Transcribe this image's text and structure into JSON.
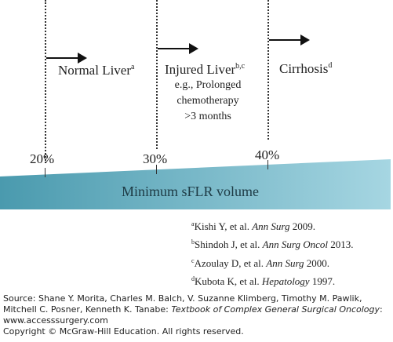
{
  "zones": [
    {
      "label": "Normal Liver",
      "sup": "a"
    },
    {
      "label": "Injured Liver",
      "sup": "b,c",
      "detail": [
        "e.g., Prolonged",
        "chemotherapy",
        ">3 months"
      ]
    },
    {
      "label": "Cirrhosis",
      "sup": "d"
    }
  ],
  "thresholds": [
    "20%",
    "30%",
    "40%"
  ],
  "bar_label": "Minimum sFLR volume",
  "colors": {
    "bar_start": "#4a9aae",
    "bar_end": "#a6d6e2"
  },
  "references": [
    {
      "sup": "a",
      "authors": "Kishi Y, et al. ",
      "journal": "Ann Surg",
      "year": " 2009."
    },
    {
      "sup": "b",
      "authors": "Shindoh J, et al. ",
      "journal": "Ann Surg Oncol",
      "year": " 2013."
    },
    {
      "sup": "c",
      "authors": "Azoulay D, et al. ",
      "journal": "Ann Surg",
      "year": " 2000."
    },
    {
      "sup": "d",
      "authors": "Kubota K, et al. ",
      "journal": "Hepatology",
      "year": " 1997."
    }
  ],
  "footer": {
    "source_prefix": "Source: Shane Y. Morita, Charles M. Balch, V. Suzanne Klimberg, Timothy M. Pawlik, Mitchell C. Posner, Kenneth K. Tanabe: ",
    "book": "Textbook of Complex General Surgical Oncology",
    "source_suffix": ":",
    "website": "www.accesssurgery.com",
    "copyright": "Copyright © McGraw-Hill Education. All rights reserved."
  }
}
